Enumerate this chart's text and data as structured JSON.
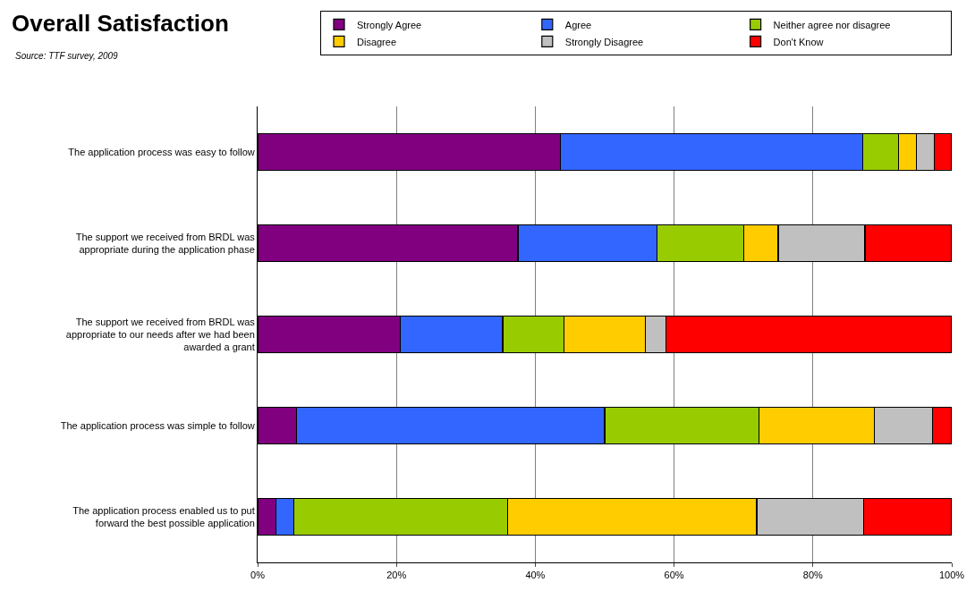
{
  "chart_data": {
    "type": "bar",
    "orientation": "horizontal",
    "stacked": true,
    "title": "Overall Satisfaction",
    "annotations": [
      "Source: TTF survey, 2009"
    ],
    "categories": [
      "The application process was easy to follow",
      "The support we received from BRDL was appropriate during the application phase",
      "The support we received from BRDL was appropriate to our needs after we had been awarded a grant",
      "The application process was simple to follow",
      "The application process enabled us to put forward the best possible application"
    ],
    "series": [
      {
        "name": "Strongly Agree",
        "color": "#800080",
        "values": [
          43.6,
          37.5,
          20.6,
          5.6,
          2.6
        ]
      },
      {
        "name": "Agree",
        "color": "#3366ff",
        "values": [
          43.6,
          20.0,
          14.7,
          44.4,
          2.6
        ]
      },
      {
        "name": "Neither agree nor disagree",
        "color": "#99cc00",
        "values": [
          5.1,
          12.5,
          8.8,
          22.2,
          30.8
        ]
      },
      {
        "name": "Disagree",
        "color": "#ffcc00",
        "values": [
          2.6,
          5.0,
          11.8,
          16.7,
          35.9
        ]
      },
      {
        "name": "Strongly Disagree",
        "color": "#c0c0c0",
        "values": [
          2.6,
          12.5,
          2.9,
          8.3,
          15.4
        ]
      },
      {
        "name": "Don't Know",
        "color": "#ff0000",
        "values": [
          2.5,
          12.5,
          41.2,
          2.8,
          12.7
        ]
      }
    ],
    "xlim": [
      0,
      100
    ],
    "xticks": [
      {
        "value": 0,
        "label": "0%"
      },
      {
        "value": 20,
        "label": "20%"
      },
      {
        "value": 40,
        "label": "40%"
      },
      {
        "value": 60,
        "label": "60%"
      },
      {
        "value": 80,
        "label": "80%"
      },
      {
        "value": 100,
        "label": "100%"
      }
    ],
    "grid": "x",
    "legend": "top right"
  }
}
